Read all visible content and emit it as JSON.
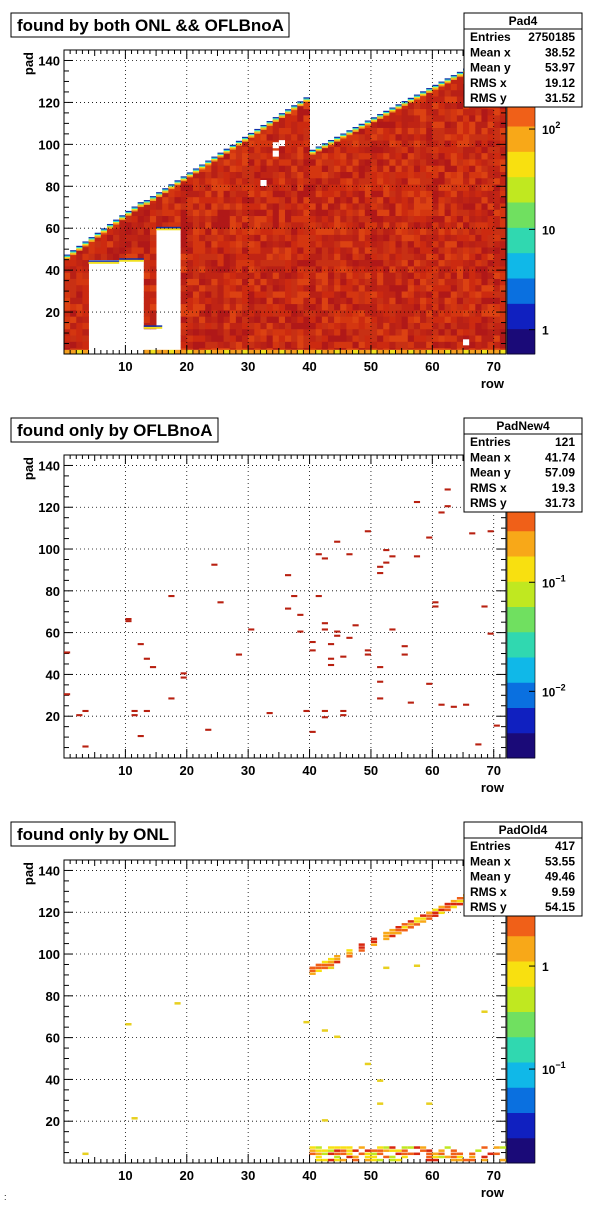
{
  "panels": [
    {
      "title": "found by both ONL && OFLBnoA",
      "stats": {
        "name": "Pad4",
        "rows": [
          {
            "label": "Entries",
            "value": "2750185"
          },
          {
            "label": "Mean x",
            "value": "38.52"
          },
          {
            "label": "Mean y",
            "value": "53.97"
          },
          {
            "label": "RMS x",
            "value": "19.12"
          },
          {
            "label": "RMS y",
            "value": "31.52"
          }
        ]
      },
      "zlabels": [
        {
          "base": "10",
          "exp": "2",
          "value": 100
        },
        {
          "base": "10",
          "exp": "",
          "value": 10
        },
        {
          "base": "1",
          "exp": "",
          "value": 1
        }
      ]
    },
    {
      "title": "found only by OFLBnoA",
      "stats": {
        "name": "PadNew4",
        "rows": [
          {
            "label": "Entries",
            "value": "121"
          },
          {
            "label": "Mean x",
            "value": "41.74"
          },
          {
            "label": "Mean y",
            "value": "57.09"
          },
          {
            "label": "RMS x",
            "value": "19.3"
          },
          {
            "label": "RMS y",
            "value": "31.73"
          }
        ]
      },
      "zlabels": [
        {
          "base": "10",
          "exp": "−1",
          "value": 0.1
        },
        {
          "base": "10",
          "exp": "−2",
          "value": 0.01
        }
      ]
    },
    {
      "title": "found only by ONL",
      "stats": {
        "name": "PadOld4",
        "rows": [
          {
            "label": "Entries",
            "value": "417"
          },
          {
            "label": "Mean x",
            "value": "53.55"
          },
          {
            "label": "Mean y",
            "value": "49.46"
          },
          {
            "label": "RMS x",
            "value": "9.59"
          },
          {
            "label": "RMS y",
            "value": "54.15"
          }
        ]
      },
      "zlabels": [
        {
          "base": "1",
          "exp": "",
          "value": 1
        },
        {
          "base": "10",
          "exp": "−1",
          "value": 0.1
        }
      ]
    }
  ],
  "chart_data": [
    {
      "type": "heatmap",
      "title": "found by both ONL && OFLBnoA",
      "xlabel": "row",
      "ylabel": "pad",
      "xlim": [
        0,
        72
      ],
      "ylim": [
        0,
        145
      ],
      "xticks": [
        10,
        20,
        30,
        40,
        50,
        60,
        70
      ],
      "yticks": [
        20,
        40,
        60,
        80,
        100,
        120,
        140
      ],
      "zscale": "log",
      "grid": true,
      "colors": [
        "#a81212",
        "#c41e0c",
        "#d83810",
        "#e8581a",
        "#f5a020",
        "#f0e020",
        "#a8e040",
        "#30d8c8",
        "#1888e0",
        "#1030a8"
      ],
      "rows_active": [
        {
          "row_range": [
            1,
            13
          ],
          "pad_max_start": 46,
          "pad_max_end": 71
        },
        {
          "row_range": [
            14,
            40
          ],
          "pad_max_start": 72,
          "pad_max_end": 121
        },
        {
          "row_range": [
            41,
            72
          ],
          "pad_max_start": 96,
          "pad_max_end": 144
        }
      ],
      "empty_regions": [
        {
          "x": [
            5,
            9
          ],
          "y": [
            0,
            43
          ]
        },
        {
          "x": [
            10,
            13
          ],
          "y": [
            0,
            44
          ]
        },
        {
          "x": [
            16,
            19
          ],
          "y": [
            0,
            59
          ]
        },
        {
          "x": [
            14,
            16
          ],
          "y": [
            0,
            12
          ]
        }
      ]
    },
    {
      "type": "heatmap",
      "title": "found only by OFLBnoA",
      "xlabel": "row",
      "ylabel": "pad",
      "xlim": [
        0,
        72
      ],
      "ylim": [
        0,
        145
      ],
      "xticks": [
        10,
        20,
        30,
        40,
        50,
        60,
        70
      ],
      "yticks": [
        20,
        40,
        60,
        80,
        100,
        120,
        140
      ],
      "zscale": "log",
      "grid": true,
      "points": [
        [
          1,
          30
        ],
        [
          1,
          50
        ],
        [
          3,
          20
        ],
        [
          4,
          22
        ],
        [
          4,
          5
        ],
        [
          11,
          65
        ],
        [
          11,
          66
        ],
        [
          12,
          22
        ],
        [
          12,
          20
        ],
        [
          13,
          10
        ],
        [
          13,
          54
        ],
        [
          14,
          47
        ],
        [
          14,
          22
        ],
        [
          15,
          43
        ],
        [
          18,
          77
        ],
        [
          18,
          28
        ],
        [
          20,
          40
        ],
        [
          20,
          38
        ],
        [
          24,
          13
        ],
        [
          25,
          92
        ],
        [
          26,
          74
        ],
        [
          29,
          49
        ],
        [
          31,
          61
        ],
        [
          34,
          21
        ],
        [
          37,
          87
        ],
        [
          37,
          71
        ],
        [
          38,
          77
        ],
        [
          39,
          68
        ],
        [
          39,
          60
        ],
        [
          40,
          22
        ],
        [
          41,
          12
        ],
        [
          41,
          55
        ],
        [
          41,
          51
        ],
        [
          42,
          77
        ],
        [
          42,
          97
        ],
        [
          43,
          95
        ],
        [
          43,
          64
        ],
        [
          43,
          61
        ],
        [
          43,
          22
        ],
        [
          43,
          19
        ],
        [
          44,
          54
        ],
        [
          44,
          47
        ],
        [
          44,
          44
        ],
        [
          45,
          60
        ],
        [
          45,
          58
        ],
        [
          45,
          103
        ],
        [
          46,
          48
        ],
        [
          46,
          22
        ],
        [
          46,
          20
        ],
        [
          47,
          97
        ],
        [
          47,
          57
        ],
        [
          48,
          63
        ],
        [
          50,
          108
        ],
        [
          50,
          51
        ],
        [
          50,
          49
        ],
        [
          52,
          43
        ],
        [
          52,
          36
        ],
        [
          52,
          28
        ],
        [
          52,
          88
        ],
        [
          52,
          91
        ],
        [
          53,
          99
        ],
        [
          53,
          93
        ],
        [
          54,
          96
        ],
        [
          54,
          61
        ],
        [
          56,
          53
        ],
        [
          56,
          49
        ],
        [
          57,
          26
        ],
        [
          58,
          96
        ],
        [
          58,
          122
        ],
        [
          60,
          35
        ],
        [
          60,
          105
        ],
        [
          61,
          74
        ],
        [
          61,
          72
        ],
        [
          62,
          25
        ],
        [
          62,
          117
        ],
        [
          63,
          120
        ],
        [
          63,
          128
        ],
        [
          64,
          24
        ],
        [
          66,
          25
        ],
        [
          67,
          107
        ],
        [
          68,
          6
        ],
        [
          69,
          72
        ],
        [
          70,
          108
        ],
        [
          70,
          59
        ],
        [
          71,
          15
        ]
      ]
    },
    {
      "type": "heatmap",
      "title": "found only by ONL",
      "xlabel": "row",
      "ylabel": "pad",
      "xlim": [
        0,
        72
      ],
      "ylim": [
        0,
        145
      ],
      "xticks": [
        10,
        20,
        30,
        40,
        50,
        60,
        70
      ],
      "yticks": [
        20,
        40,
        60,
        80,
        100,
        120,
        140
      ],
      "zscale": "log",
      "grid": true,
      "diagonal_band": {
        "row_range": [
          41,
          72
        ],
        "pad_range": [
          94,
          137
        ]
      },
      "bottom_band": {
        "row_range": [
          41,
          72
        ],
        "pad_range": [
          2,
          9
        ]
      },
      "points": [
        [
          4,
          4
        ],
        [
          11,
          66
        ],
        [
          12,
          21
        ],
        [
          19,
          76
        ],
        [
          40,
          67
        ],
        [
          43,
          63
        ],
        [
          44,
          93
        ],
        [
          45,
          60
        ],
        [
          50,
          47
        ],
        [
          52,
          39
        ],
        [
          52,
          28
        ],
        [
          53,
          93
        ],
        [
          58,
          94
        ],
        [
          60,
          28
        ],
        [
          69,
          72
        ],
        [
          43,
          20
        ]
      ]
    }
  ]
}
